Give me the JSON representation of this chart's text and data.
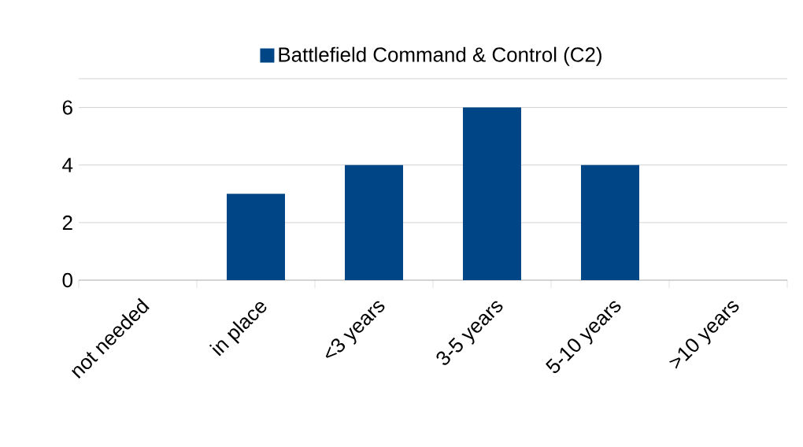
{
  "chart_data": {
    "type": "bar",
    "categories": [
      "not needed",
      "in place",
      "<3 years",
      "3-5 years",
      "5-10 years",
      ">10 years"
    ],
    "series": [
      {
        "name": "Battlefield Command & Control (C2)",
        "color": "#004586",
        "values": [
          0,
          3,
          4,
          6,
          4,
          0
        ]
      }
    ],
    "ylim": [
      0,
      7
    ],
    "yticks": [
      0,
      2,
      4,
      6,
      {
        "value": 7,
        "label": null
      }
    ],
    "grid": "y",
    "legend": "top"
  }
}
